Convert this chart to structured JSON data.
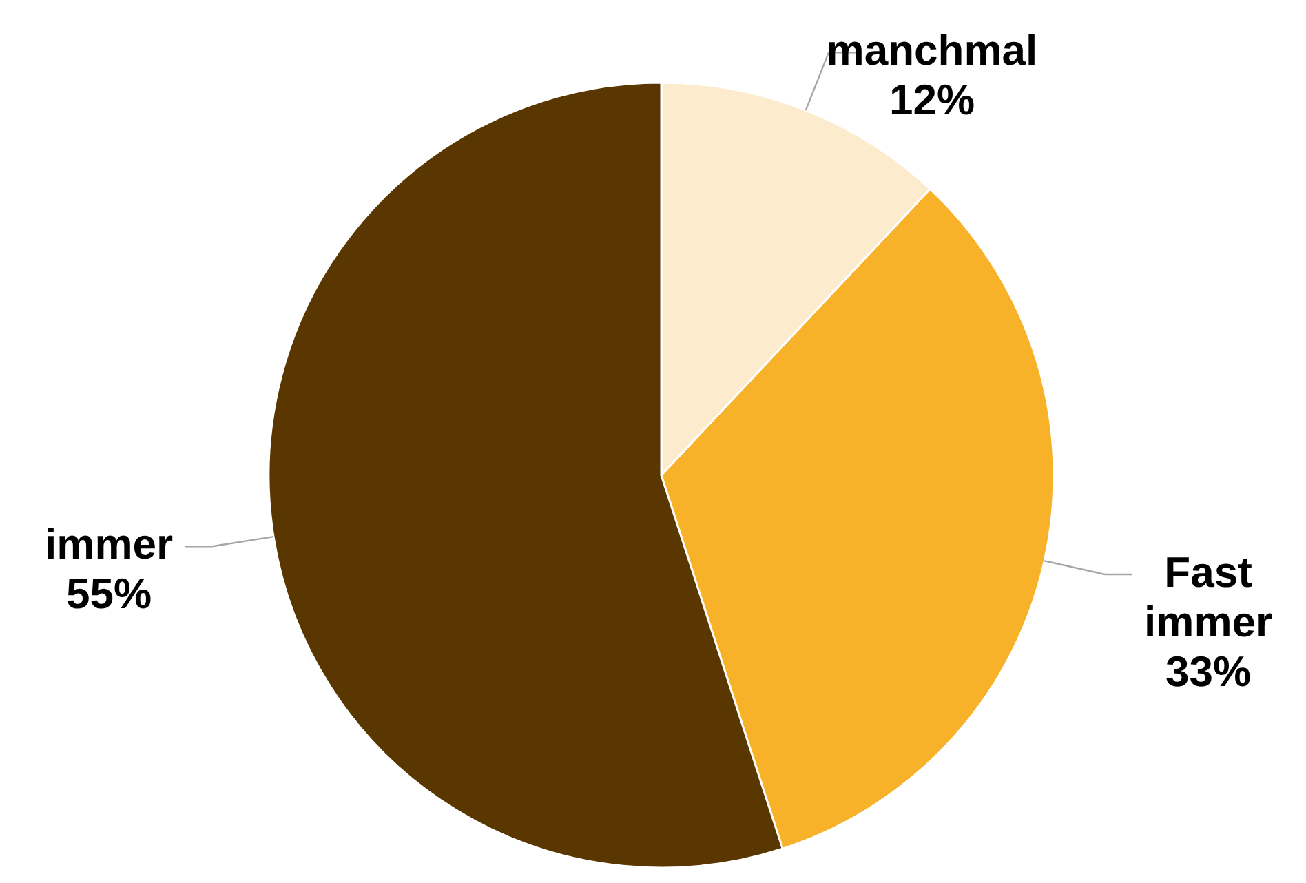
{
  "chart_data": {
    "type": "pie",
    "categories": [
      "manchmal",
      "Fast immer",
      "immer"
    ],
    "values": [
      12,
      33,
      55
    ],
    "colors": [
      "#fdebcd",
      "#f8b229",
      "#5a3700"
    ],
    "value_labels": [
      "12%",
      "33%",
      "55%"
    ]
  }
}
